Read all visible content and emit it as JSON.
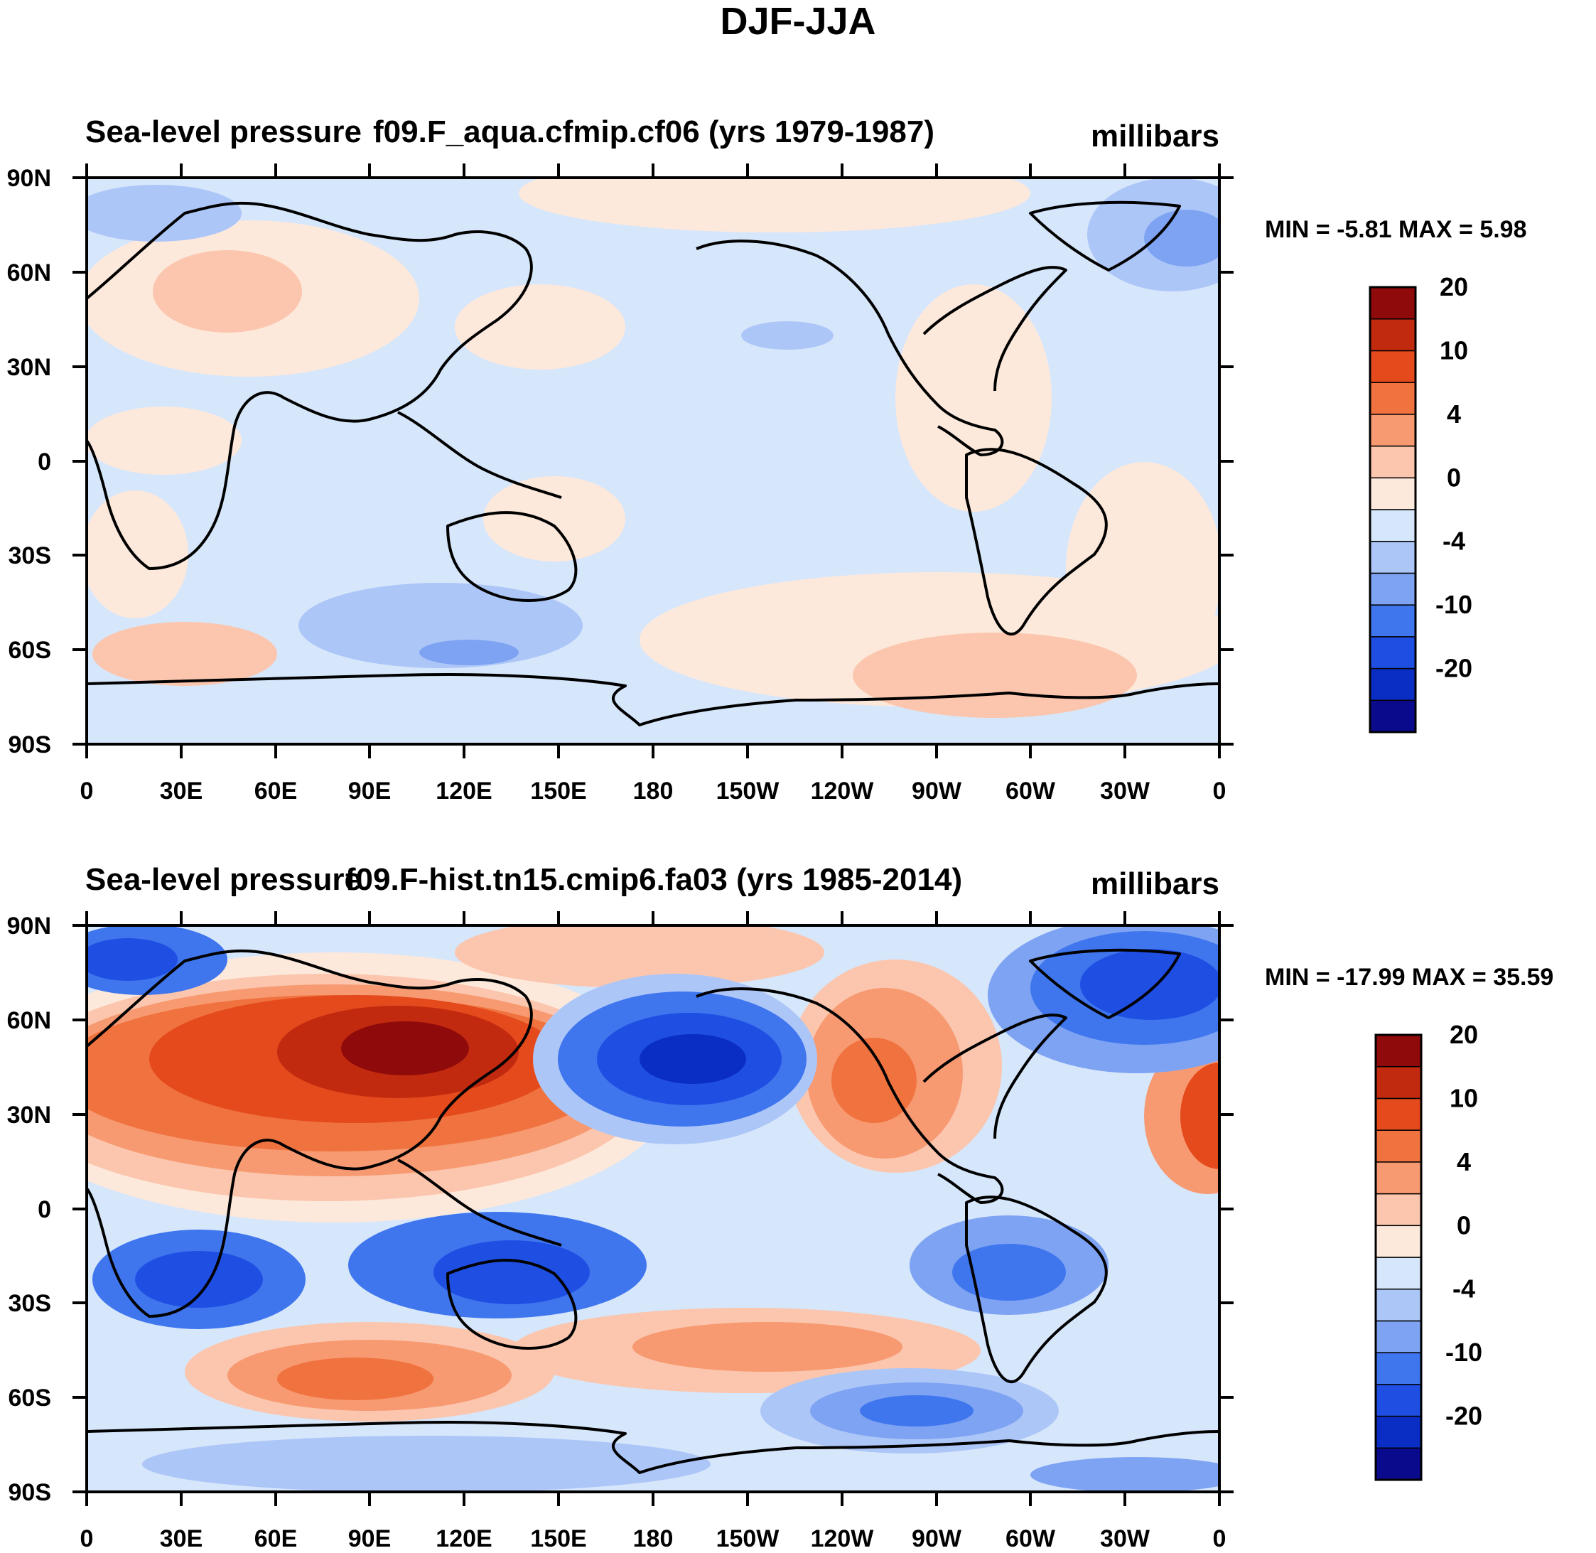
{
  "figure": {
    "title": "DJF-JJA"
  },
  "colorbar": {
    "colors": [
      "#0a0a8c",
      "#0a2ec4",
      "#1f4ee3",
      "#3f76ee",
      "#7ea3f3",
      "#adc6f8",
      "#d6e6fb",
      "#fde9dc",
      "#fbc6ad",
      "#f79a72",
      "#f0733f",
      "#e44a1c",
      "#c22a10",
      "#8f0a0a"
    ],
    "labels": [
      "-20",
      "-10",
      "-4",
      "0",
      "4",
      "10",
      "20"
    ]
  },
  "panels": [
    {
      "left_title": "Sea-level pressure",
      "center_title": "f09.F_aqua.cfmip.cf06 (yrs 1979-1987)",
      "units": "millibars",
      "stats": "MIN =  -5.81 MAX =   5.98",
      "lat_labels": [
        "90N",
        "60N",
        "30N",
        "0",
        "30S",
        "60S",
        "90S"
      ],
      "lon_labels": [
        "0",
        "30E",
        "60E",
        "90E",
        "120E",
        "150E",
        "180",
        "150W",
        "120W",
        "90W",
        "60W",
        "30W",
        "0"
      ]
    },
    {
      "left_title": "Sea-level pressure",
      "center_title": "f09.F-hist.tn15.cmip6.fa03 (yrs 1985-2014)",
      "units": "millibars",
      "stats": "MIN = -17.99 MAX =  35.59",
      "lat_labels": [
        "90N",
        "60N",
        "30N",
        "0",
        "30S",
        "60S",
        "90S"
      ],
      "lon_labels": [
        "0",
        "30E",
        "60E",
        "90E",
        "120E",
        "150E",
        "180",
        "150W",
        "120W",
        "90W",
        "60W",
        "30W",
        "0"
      ]
    }
  ]
}
